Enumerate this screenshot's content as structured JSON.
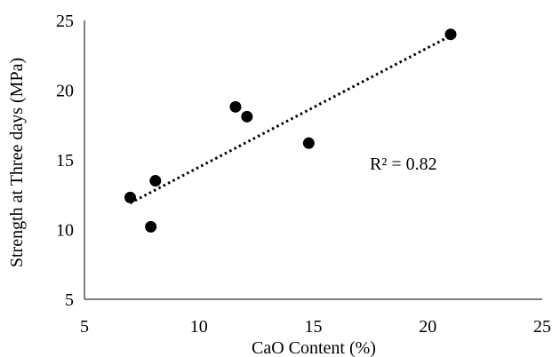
{
  "chart_data": {
    "type": "scatter",
    "title": "",
    "xlabel": "CaO Content (%)",
    "ylabel": "Strength at Three days (MPa)",
    "xlim": [
      5,
      25
    ],
    "ylim": [
      5,
      25
    ],
    "x_ticks": [
      "5",
      "10",
      "15",
      "20",
      "25"
    ],
    "y_ticks": [
      "5",
      "10",
      "15",
      "20",
      "25"
    ],
    "grid": false,
    "legend": "none",
    "series": [
      {
        "marker_color": "#000000",
        "points": [
          {
            "x": 7.0,
            "y": 12.3
          },
          {
            "x": 7.9,
            "y": 10.2
          },
          {
            "x": 8.1,
            "y": 13.5
          },
          {
            "x": 11.6,
            "y": 18.8
          },
          {
            "x": 12.1,
            "y": 18.1
          },
          {
            "x": 14.8,
            "y": 16.2
          },
          {
            "x": 21.0,
            "y": 24.0
          }
        ]
      }
    ],
    "trendline": {
      "style": "dotted",
      "x_start": 7.0,
      "y_start": 11.9,
      "x_end": 21.0,
      "y_end": 23.9
    },
    "annotation": "R² = 0.82"
  }
}
